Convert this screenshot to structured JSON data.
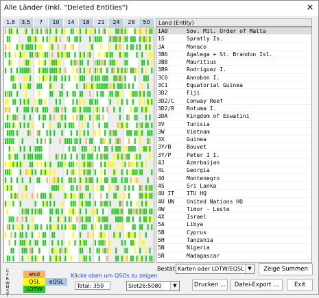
{
  "window": {
    "title": "Alle Länder (inkl. \"Deleted Entities\")",
    "close_glyph": "✕"
  },
  "bands": [
    "1.8",
    "3.5",
    "7",
    "10",
    "14",
    "18",
    "21",
    "24",
    "28",
    "50"
  ],
  "list_header": "Land (Entity)",
  "entities": [
    {
      "prefix": "1A0",
      "name": "Sov. Mil. Order of Malta"
    },
    {
      "prefix": "1S",
      "name": "Spratly Is."
    },
    {
      "prefix": "3A",
      "name": "Monaco"
    },
    {
      "prefix": "3B6",
      "name": "Agalega + St. Brandon Isl."
    },
    {
      "prefix": "3B8",
      "name": "Mauritius"
    },
    {
      "prefix": "3B9",
      "name": "Rodriguez I."
    },
    {
      "prefix": "3C0",
      "name": "Annobon I."
    },
    {
      "prefix": "3C1",
      "name": "Equatorial Guinea"
    },
    {
      "prefix": "3D2",
      "name": "Fiji"
    },
    {
      "prefix": "3D2/C",
      "name": "Conway Reef"
    },
    {
      "prefix": "3D2/R",
      "name": "Rotuma I."
    },
    {
      "prefix": "3DA",
      "name": "Kingdom of Eswatini"
    },
    {
      "prefix": "3V",
      "name": "Tunisia"
    },
    {
      "prefix": "3W",
      "name": "Vietnam"
    },
    {
      "prefix": "3X",
      "name": "Guinea"
    },
    {
      "prefix": "3Y/B",
      "name": "Bouvet"
    },
    {
      "prefix": "3Y/P",
      "name": "Peter I I."
    },
    {
      "prefix": "4J",
      "name": "Azerbaijan"
    },
    {
      "prefix": "4L",
      "name": "Georgia"
    },
    {
      "prefix": "4O",
      "name": "Montenegro"
    },
    {
      "prefix": "4S",
      "name": "Sri Lanka"
    },
    {
      "prefix": "4U IT",
      "name": "ITU HQ"
    },
    {
      "prefix": "4U UN",
      "name": "United Nations HQ"
    },
    {
      "prefix": "4W",
      "name": "Timor - Leste"
    },
    {
      "prefix": "4X",
      "name": "Israel"
    },
    {
      "prefix": "5A",
      "name": "Libya"
    },
    {
      "prefix": "5B",
      "name": "Cyprus"
    },
    {
      "prefix": "5H",
      "name": "Tanzania"
    },
    {
      "prefix": "5N",
      "name": "Nigeria"
    },
    {
      "prefix": "5R",
      "name": "Madagascar"
    }
  ],
  "legend": {
    "letters": [
      "C",
      "F",
      "R",
      "W",
      "M",
      "S",
      "T"
    ],
    "wkd": "wkd",
    "qsl": "QSL",
    "eqsl": "eQSL",
    "lotw": "LOTW",
    "colors": {
      "wkd": "#f5b26b",
      "qsl": "#ffff00",
      "eqsl": "#a8c4e6",
      "lotw": "#22cc22"
    }
  },
  "hint": "Klicke oben um QSOs zu zeigen",
  "total": "Total: 350",
  "controls": {
    "bestaet_label": "Bestät.",
    "confirm_select": "Karten oder LOTW/EQSL",
    "slot_select": "Slot26:5080",
    "show_sums": "Zeige Summen",
    "print": "Drucken ...",
    "export": "Datei-Export ...",
    "exit": "Exit"
  }
}
